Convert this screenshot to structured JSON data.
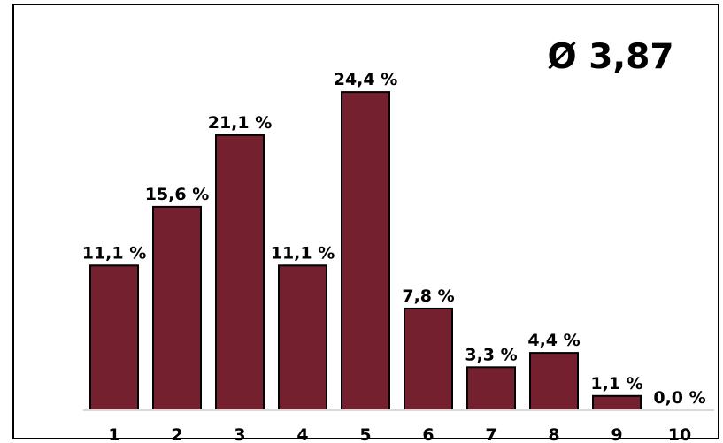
{
  "chart_data": {
    "type": "bar",
    "categories": [
      "1",
      "2",
      "3",
      "4",
      "5",
      "6",
      "7",
      "8",
      "9",
      "10"
    ],
    "values": [
      11.1,
      15.6,
      21.1,
      11.1,
      24.4,
      7.8,
      3.3,
      4.4,
      1.1,
      0.0
    ],
    "value_labels": [
      "11,1 %",
      "15,6 %",
      "21,1 %",
      "11,1 %",
      "24,4 %",
      "7,8 %",
      "3,3 %",
      "4,4 %",
      "1,1 %",
      "0,0 %"
    ],
    "annotation": "Ø 3,87",
    "bar_color": "#74202F",
    "axis_color": "#D9D9D9",
    "grid": false,
    "legend": "none"
  }
}
